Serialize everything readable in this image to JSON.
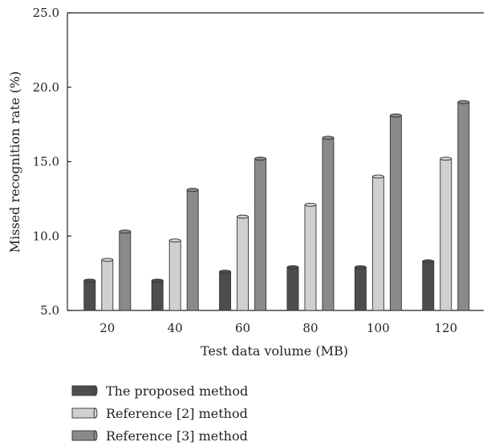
{
  "chart_data": {
    "type": "bar",
    "title": "",
    "xlabel": "Test data volume (MB)",
    "ylabel": "Missed recognition rate (%)",
    "ylim": [
      5.0,
      25.0
    ],
    "yticks": [
      "5.0",
      "10.0",
      "15.0",
      "20.0",
      "25.0"
    ],
    "categories": [
      "20",
      "40",
      "60",
      "80",
      "100",
      "120"
    ],
    "series": [
      {
        "name": "The proposed method",
        "values": [
          7.0,
          7.0,
          7.6,
          7.9,
          7.9,
          8.3
        ],
        "color": "#4d4d4d"
      },
      {
        "name": "Reference [2] method",
        "values": [
          8.4,
          9.7,
          11.3,
          12.1,
          14.0,
          15.2
        ],
        "color": "#d0d0d0"
      },
      {
        "name": "Reference [3] method",
        "values": [
          10.3,
          13.1,
          15.2,
          16.6,
          18.1,
          19.0
        ],
        "color": "#8a8a8a"
      }
    ],
    "grid": false,
    "legend_position": "bottom-left"
  }
}
